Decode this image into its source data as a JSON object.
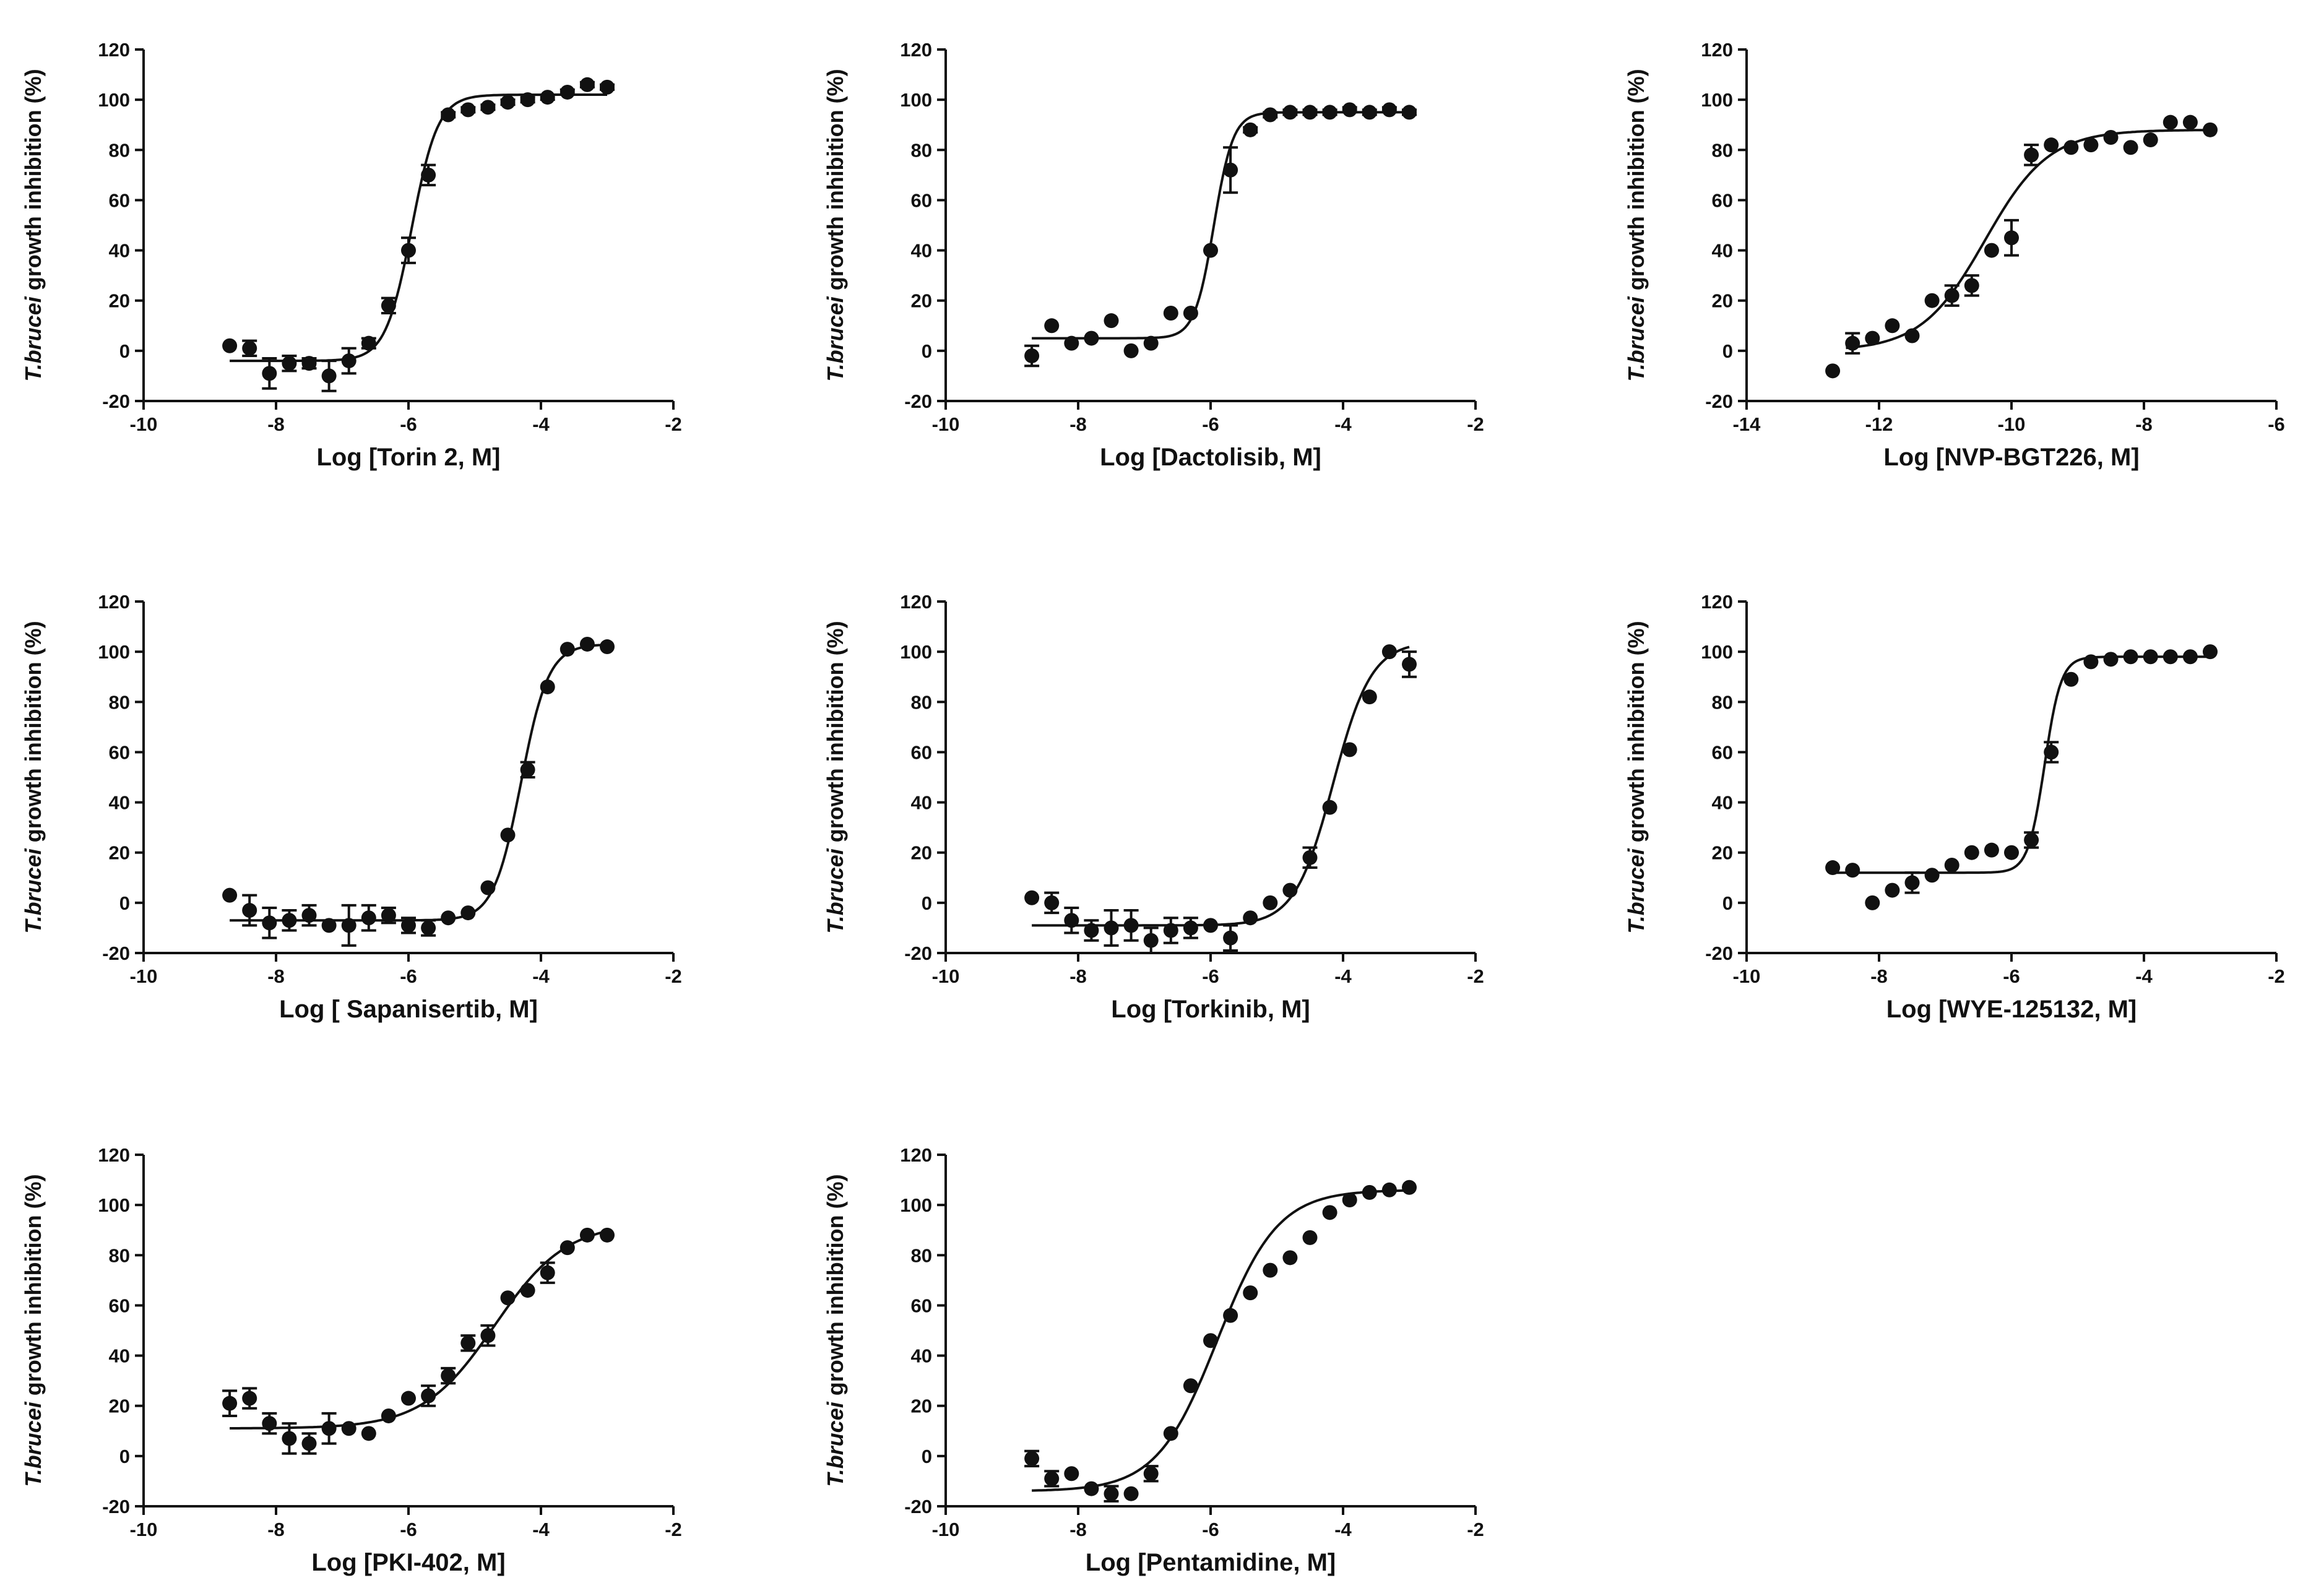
{
  "figure": {
    "marker_color": "#111111"
  },
  "chart_data": [
    {
      "type": "scatter",
      "xlabel": "Log [Torin 2, M]",
      "ylabel_italic": "T.brucei",
      "ylabel_rest": " growth inhibition (%)",
      "xlim": [
        -10,
        -2
      ],
      "ylim": [
        -20,
        120
      ],
      "xticks": [
        -10,
        -8,
        -6,
        -4,
        -2
      ],
      "yticks": [
        -20,
        0,
        20,
        40,
        60,
        80,
        100,
        120
      ],
      "fit": {
        "bottom": -4,
        "top": 102,
        "logEC50": -5.95,
        "hill": 2.2,
        "x_range": [
          -8.7,
          -3.0
        ]
      },
      "points": [
        {
          "x": -8.7,
          "y": 2,
          "err": 0
        },
        {
          "x": -8.4,
          "y": 1,
          "err": 3
        },
        {
          "x": -8.1,
          "y": -9,
          "err": 6
        },
        {
          "x": -7.8,
          "y": -5,
          "err": 3
        },
        {
          "x": -7.5,
          "y": -5,
          "err": 2
        },
        {
          "x": -7.2,
          "y": -10,
          "err": 6
        },
        {
          "x": -6.9,
          "y": -4,
          "err": 5
        },
        {
          "x": -6.6,
          "y": 3,
          "err": 2
        },
        {
          "x": -6.3,
          "y": 18,
          "err": 3
        },
        {
          "x": -6.0,
          "y": 40,
          "err": 5
        },
        {
          "x": -5.7,
          "y": 70,
          "err": 4
        },
        {
          "x": -5.4,
          "y": 94,
          "err": 1
        },
        {
          "x": -5.1,
          "y": 96,
          "err": 1
        },
        {
          "x": -4.8,
          "y": 97,
          "err": 1
        },
        {
          "x": -4.5,
          "y": 99,
          "err": 1
        },
        {
          "x": -4.2,
          "y": 100,
          "err": 1
        },
        {
          "x": -3.9,
          "y": 101,
          "err": 1
        },
        {
          "x": -3.6,
          "y": 103,
          "err": 1
        },
        {
          "x": -3.3,
          "y": 106,
          "err": 1
        },
        {
          "x": -3.0,
          "y": 105,
          "err": 1
        }
      ]
    },
    {
      "type": "scatter",
      "xlabel": "Log [Dactolisib, M]",
      "ylabel_italic": "T.brucei",
      "ylabel_rest": " growth inhibition (%)",
      "xlim": [
        -10,
        -2
      ],
      "ylim": [
        -20,
        120
      ],
      "xticks": [
        -10,
        -8,
        -6,
        -4,
        -2
      ],
      "yticks": [
        -20,
        0,
        20,
        40,
        60,
        80,
        100,
        120
      ],
      "fit": {
        "bottom": 5,
        "top": 95,
        "logEC50": -5.95,
        "hill": 3,
        "x_range": [
          -8.7,
          -3.0
        ]
      },
      "points": [
        {
          "x": -8.7,
          "y": -2,
          "err": 4
        },
        {
          "x": -8.4,
          "y": 10,
          "err": 0
        },
        {
          "x": -8.1,
          "y": 3,
          "err": 0
        },
        {
          "x": -7.8,
          "y": 5,
          "err": 0
        },
        {
          "x": -7.5,
          "y": 12,
          "err": 0
        },
        {
          "x": -7.2,
          "y": 0,
          "err": 0
        },
        {
          "x": -6.9,
          "y": 3,
          "err": 0
        },
        {
          "x": -6.6,
          "y": 15,
          "err": 0
        },
        {
          "x": -6.3,
          "y": 15,
          "err": 0
        },
        {
          "x": -6.0,
          "y": 40,
          "err": 0
        },
        {
          "x": -5.7,
          "y": 72,
          "err": 9
        },
        {
          "x": -5.4,
          "y": 88,
          "err": 1
        },
        {
          "x": -5.1,
          "y": 94,
          "err": 1
        },
        {
          "x": -4.8,
          "y": 95,
          "err": 1
        },
        {
          "x": -4.5,
          "y": 95,
          "err": 1
        },
        {
          "x": -4.2,
          "y": 95,
          "err": 1
        },
        {
          "x": -3.9,
          "y": 96,
          "err": 1
        },
        {
          "x": -3.6,
          "y": 95,
          "err": 1
        },
        {
          "x": -3.3,
          "y": 96,
          "err": 1
        },
        {
          "x": -3.0,
          "y": 95,
          "err": 1
        }
      ]
    },
    {
      "type": "scatter",
      "xlabel": "Log [NVP-BGT226, M]",
      "ylabel_italic": "T.brucei",
      "ylabel_rest": " growth inhibition (%)",
      "xlim": [
        -14,
        -6
      ],
      "ylim": [
        -20,
        120
      ],
      "xticks": [
        -14,
        -12,
        -10,
        -8,
        -6
      ],
      "yticks": [
        -20,
        0,
        20,
        40,
        60,
        80,
        100,
        120
      ],
      "fit": {
        "bottom": 0,
        "top": 88,
        "logEC50": -10.4,
        "hill": 0.9,
        "x_range": [
          -12.5,
          -7.0
        ]
      },
      "points": [
        {
          "x": -12.7,
          "y": -8,
          "err": 0
        },
        {
          "x": -12.4,
          "y": 3,
          "err": 4
        },
        {
          "x": -12.1,
          "y": 5,
          "err": 0
        },
        {
          "x": -11.8,
          "y": 10,
          "err": 0
        },
        {
          "x": -11.5,
          "y": 6,
          "err": 0
        },
        {
          "x": -11.2,
          "y": 20,
          "err": 0
        },
        {
          "x": -10.9,
          "y": 22,
          "err": 4
        },
        {
          "x": -10.6,
          "y": 26,
          "err": 4
        },
        {
          "x": -10.3,
          "y": 40,
          "err": 0
        },
        {
          "x": -10.0,
          "y": 45,
          "err": 7
        },
        {
          "x": -9.7,
          "y": 78,
          "err": 4
        },
        {
          "x": -9.4,
          "y": 82,
          "err": 0
        },
        {
          "x": -9.1,
          "y": 81,
          "err": 0
        },
        {
          "x": -8.8,
          "y": 82,
          "err": 0
        },
        {
          "x": -8.5,
          "y": 85,
          "err": 0
        },
        {
          "x": -8.2,
          "y": 81,
          "err": 0
        },
        {
          "x": -7.9,
          "y": 84,
          "err": 0
        },
        {
          "x": -7.6,
          "y": 91,
          "err": 0
        },
        {
          "x": -7.3,
          "y": 91,
          "err": 0
        },
        {
          "x": -7.0,
          "y": 88,
          "err": 0
        }
      ]
    },
    {
      "type": "scatter",
      "xlabel": "Log [ Sapanisertib, M]",
      "ylabel_italic": "T.brucei",
      "ylabel_rest": " growth inhibition (%)",
      "xlim": [
        -10,
        -2
      ],
      "ylim": [
        -20,
        120
      ],
      "xticks": [
        -10,
        -8,
        -6,
        -4,
        -2
      ],
      "yticks": [
        -20,
        0,
        20,
        40,
        60,
        80,
        100,
        120
      ],
      "fit": {
        "bottom": -7,
        "top": 103,
        "logEC50": -4.3,
        "hill": 2.1,
        "x_range": [
          -8.7,
          -3.0
        ]
      },
      "points": [
        {
          "x": -8.7,
          "y": 3,
          "err": 0
        },
        {
          "x": -8.4,
          "y": -3,
          "err": 6
        },
        {
          "x": -8.1,
          "y": -8,
          "err": 6
        },
        {
          "x": -7.8,
          "y": -7,
          "err": 4
        },
        {
          "x": -7.5,
          "y": -5,
          "err": 4
        },
        {
          "x": -7.2,
          "y": -9,
          "err": 0
        },
        {
          "x": -6.9,
          "y": -9,
          "err": 8
        },
        {
          "x": -6.6,
          "y": -6,
          "err": 5
        },
        {
          "x": -6.3,
          "y": -5,
          "err": 3
        },
        {
          "x": -6.0,
          "y": -9,
          "err": 3
        },
        {
          "x": -5.7,
          "y": -10,
          "err": 3
        },
        {
          "x": -5.4,
          "y": -6,
          "err": 0
        },
        {
          "x": -5.1,
          "y": -4,
          "err": 0
        },
        {
          "x": -4.8,
          "y": 6,
          "err": 0
        },
        {
          "x": -4.5,
          "y": 27,
          "err": 0
        },
        {
          "x": -4.2,
          "y": 53,
          "err": 3
        },
        {
          "x": -3.9,
          "y": 86,
          "err": 0
        },
        {
          "x": -3.6,
          "y": 101,
          "err": 0
        },
        {
          "x": -3.3,
          "y": 103,
          "err": 0
        },
        {
          "x": -3.0,
          "y": 102,
          "err": 0
        }
      ]
    },
    {
      "type": "scatter",
      "xlabel": "Log [Torkinib, M]",
      "ylabel_italic": "T.brucei",
      "ylabel_rest": " growth inhibition (%)",
      "xlim": [
        -10,
        -2
      ],
      "ylim": [
        -20,
        120
      ],
      "xticks": [
        -10,
        -8,
        -6,
        -4,
        -2
      ],
      "yticks": [
        -20,
        0,
        20,
        40,
        60,
        80,
        100,
        120
      ],
      "fit": {
        "bottom": -9,
        "top": 104,
        "logEC50": -4.15,
        "hill": 1.5,
        "x_range": [
          -8.7,
          -3.0
        ]
      },
      "points": [
        {
          "x": -8.7,
          "y": 2,
          "err": 0
        },
        {
          "x": -8.4,
          "y": 0,
          "err": 4
        },
        {
          "x": -8.1,
          "y": -7,
          "err": 5
        },
        {
          "x": -7.8,
          "y": -11,
          "err": 4
        },
        {
          "x": -7.5,
          "y": -10,
          "err": 7
        },
        {
          "x": -7.2,
          "y": -9,
          "err": 6
        },
        {
          "x": -6.9,
          "y": -15,
          "err": 5
        },
        {
          "x": -6.6,
          "y": -11,
          "err": 5
        },
        {
          "x": -6.3,
          "y": -10,
          "err": 4
        },
        {
          "x": -6.0,
          "y": -9,
          "err": 0
        },
        {
          "x": -5.7,
          "y": -14,
          "err": 5
        },
        {
          "x": -5.4,
          "y": -6,
          "err": 0
        },
        {
          "x": -5.1,
          "y": 0,
          "err": 0
        },
        {
          "x": -4.8,
          "y": 5,
          "err": 0
        },
        {
          "x": -4.5,
          "y": 18,
          "err": 4
        },
        {
          "x": -4.2,
          "y": 38,
          "err": 0
        },
        {
          "x": -3.9,
          "y": 61,
          "err": 0
        },
        {
          "x": -3.6,
          "y": 82,
          "err": 0
        },
        {
          "x": -3.3,
          "y": 100,
          "err": 0
        },
        {
          "x": -3.0,
          "y": 95,
          "err": 5
        }
      ]
    },
    {
      "type": "scatter",
      "xlabel": "Log [WYE-125132, M]",
      "ylabel_italic": "T.brucei",
      "ylabel_rest": " growth inhibition (%)",
      "xlim": [
        -10,
        -2
      ],
      "ylim": [
        -20,
        120
      ],
      "xticks": [
        -10,
        -8,
        -6,
        -4,
        -2
      ],
      "yticks": [
        -20,
        0,
        20,
        40,
        60,
        80,
        100,
        120
      ],
      "fit": {
        "bottom": 12,
        "top": 98,
        "logEC50": -5.5,
        "hill": 3.5,
        "x_range": [
          -8.7,
          -3.0
        ]
      },
      "points": [
        {
          "x": -8.7,
          "y": 14,
          "err": 0
        },
        {
          "x": -8.4,
          "y": 13,
          "err": 0
        },
        {
          "x": -8.1,
          "y": 0,
          "err": 0
        },
        {
          "x": -7.8,
          "y": 5,
          "err": 0
        },
        {
          "x": -7.5,
          "y": 8,
          "err": 4
        },
        {
          "x": -7.2,
          "y": 11,
          "err": 0
        },
        {
          "x": -6.9,
          "y": 15,
          "err": 0
        },
        {
          "x": -6.6,
          "y": 20,
          "err": 0
        },
        {
          "x": -6.3,
          "y": 21,
          "err": 0
        },
        {
          "x": -6.0,
          "y": 20,
          "err": 0
        },
        {
          "x": -5.7,
          "y": 25,
          "err": 3
        },
        {
          "x": -5.4,
          "y": 60,
          "err": 4
        },
        {
          "x": -5.1,
          "y": 89,
          "err": 0
        },
        {
          "x": -4.8,
          "y": 96,
          "err": 0
        },
        {
          "x": -4.5,
          "y": 97,
          "err": 0
        },
        {
          "x": -4.2,
          "y": 98,
          "err": 0
        },
        {
          "x": -3.9,
          "y": 98,
          "err": 0
        },
        {
          "x": -3.6,
          "y": 98,
          "err": 0
        },
        {
          "x": -3.3,
          "y": 98,
          "err": 0
        },
        {
          "x": -3.0,
          "y": 100,
          "err": 0
        }
      ]
    },
    {
      "type": "scatter",
      "xlabel": "Log [PKI-402, M]",
      "ylabel_italic": "T.brucei",
      "ylabel_rest": " growth inhibition (%)",
      "xlim": [
        -10,
        -2
      ],
      "ylim": [
        -20,
        120
      ],
      "xticks": [
        -10,
        -8,
        -6,
        -4,
        -2
      ],
      "yticks": [
        -20,
        0,
        20,
        40,
        60,
        80,
        100,
        120
      ],
      "fit": {
        "bottom": 11,
        "top": 93,
        "logEC50": -4.7,
        "hill": 0.8,
        "x_range": [
          -8.7,
          -3.0
        ]
      },
      "points": [
        {
          "x": -8.7,
          "y": 21,
          "err": 5
        },
        {
          "x": -8.4,
          "y": 23,
          "err": 4
        },
        {
          "x": -8.1,
          "y": 13,
          "err": 4
        },
        {
          "x": -7.8,
          "y": 7,
          "err": 6
        },
        {
          "x": -7.5,
          "y": 5,
          "err": 4
        },
        {
          "x": -7.2,
          "y": 11,
          "err": 6
        },
        {
          "x": -6.9,
          "y": 11,
          "err": 0
        },
        {
          "x": -6.6,
          "y": 9,
          "err": 0
        },
        {
          "x": -6.3,
          "y": 16,
          "err": 0
        },
        {
          "x": -6.0,
          "y": 23,
          "err": 0
        },
        {
          "x": -5.7,
          "y": 24,
          "err": 4
        },
        {
          "x": -5.4,
          "y": 32,
          "err": 3
        },
        {
          "x": -5.1,
          "y": 45,
          "err": 3
        },
        {
          "x": -4.8,
          "y": 48,
          "err": 4
        },
        {
          "x": -4.5,
          "y": 63,
          "err": 0
        },
        {
          "x": -4.2,
          "y": 66,
          "err": 0
        },
        {
          "x": -3.9,
          "y": 73,
          "err": 4
        },
        {
          "x": -3.6,
          "y": 83,
          "err": 0
        },
        {
          "x": -3.3,
          "y": 88,
          "err": 0
        },
        {
          "x": -3.0,
          "y": 88,
          "err": 0
        }
      ]
    },
    {
      "type": "scatter",
      "xlabel": "Log [Pentamidine, M]",
      "ylabel_italic": "T.brucei",
      "ylabel_rest": " growth inhibition (%)",
      "xlim": [
        -10,
        -2
      ],
      "ylim": [
        -20,
        120
      ],
      "xticks": [
        -10,
        -8,
        -6,
        -4,
        -2
      ],
      "yticks": [
        -20,
        0,
        20,
        40,
        60,
        80,
        100,
        120
      ],
      "fit": {
        "bottom": -14,
        "top": 106,
        "logEC50": -5.9,
        "hill": 0.95,
        "x_range": [
          -8.7,
          -3.0
        ]
      },
      "points": [
        {
          "x": -8.7,
          "y": -1,
          "err": 3
        },
        {
          "x": -8.4,
          "y": -9,
          "err": 3
        },
        {
          "x": -8.1,
          "y": -7,
          "err": 0
        },
        {
          "x": -7.8,
          "y": -13,
          "err": 0
        },
        {
          "x": -7.5,
          "y": -15,
          "err": 3
        },
        {
          "x": -7.2,
          "y": -15,
          "err": 0
        },
        {
          "x": -6.9,
          "y": -7,
          "err": 3
        },
        {
          "x": -6.6,
          "y": 9,
          "err": 0
        },
        {
          "x": -6.3,
          "y": 28,
          "err": 0
        },
        {
          "x": -6.0,
          "y": 46,
          "err": 0
        },
        {
          "x": -5.7,
          "y": 56,
          "err": 0
        },
        {
          "x": -5.4,
          "y": 65,
          "err": 0
        },
        {
          "x": -5.1,
          "y": 74,
          "err": 0
        },
        {
          "x": -4.8,
          "y": 79,
          "err": 0
        },
        {
          "x": -4.5,
          "y": 87,
          "err": 0
        },
        {
          "x": -4.2,
          "y": 97,
          "err": 0
        },
        {
          "x": -3.9,
          "y": 102,
          "err": 0
        },
        {
          "x": -3.6,
          "y": 105,
          "err": 0
        },
        {
          "x": -3.3,
          "y": 106,
          "err": 0
        },
        {
          "x": -3.0,
          "y": 107,
          "err": 0
        }
      ]
    }
  ]
}
